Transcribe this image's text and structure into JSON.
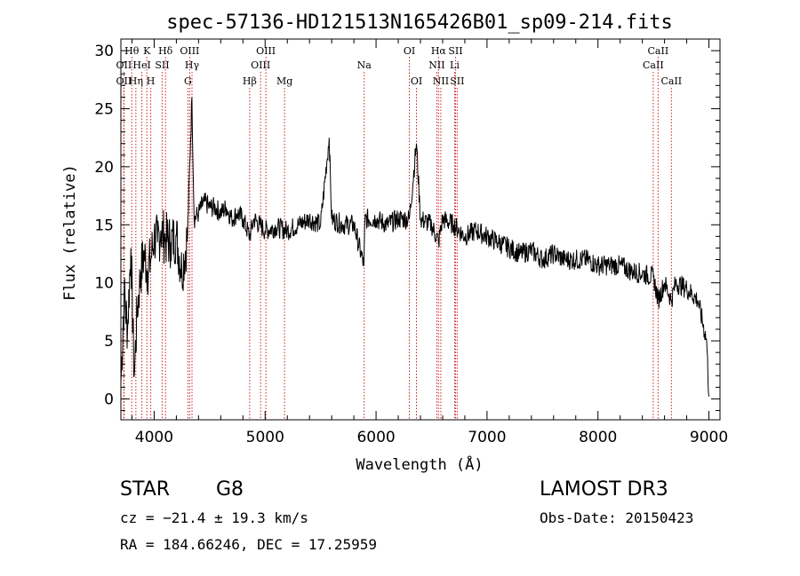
{
  "chart_data": {
    "type": "line",
    "title": "spec-57136-HD121513N165426B01_sp09-214.fits",
    "xlabel": "Wavelength (Å)",
    "ylabel": "Flux (relative)",
    "xlim": [
      3700,
      9100
    ],
    "ylim": [
      -1.8,
      31.0
    ],
    "xticks": [
      4000,
      5000,
      6000,
      7000,
      8000,
      9000
    ],
    "yticks": [
      0,
      5,
      10,
      15,
      20,
      25,
      30
    ],
    "xtick_labels": [
      "4000",
      "5000",
      "6000",
      "7000",
      "8000",
      "9000"
    ],
    "ytick_labels": [
      "0",
      "5",
      "10",
      "15",
      "20",
      "25",
      "30"
    ],
    "grid": false,
    "series": [
      {
        "name": "spectrum",
        "x": [
          3700,
          3730,
          3760,
          3790,
          3820,
          3850,
          3880,
          3910,
          3940,
          3970,
          4000,
          4030,
          4060,
          4100,
          4150,
          4200,
          4250,
          4300,
          4340,
          4360,
          4400,
          4450,
          4500,
          4550,
          4600,
          4650,
          4700,
          4750,
          4800,
          4860,
          4900,
          4950,
          5000,
          5100,
          5200,
          5300,
          5400,
          5500,
          5577,
          5600,
          5700,
          5800,
          5890,
          5900,
          6000,
          6100,
          6200,
          6300,
          6364,
          6400,
          6500,
          6563,
          6600,
          6700,
          6800,
          6900,
          7000,
          7100,
          7200,
          7300,
          7400,
          7500,
          7600,
          7700,
          7800,
          7900,
          8000,
          8100,
          8200,
          8300,
          8400,
          8500,
          8542,
          8600,
          8662,
          8700,
          8800,
          8900,
          8980,
          9000
        ],
        "y": [
          1.5,
          9.0,
          6.0,
          13.0,
          2.0,
          8.0,
          11.0,
          12.5,
          11.0,
          12.0,
          14.0,
          13.5,
          14.5,
          13.8,
          13.5,
          14.0,
          11.0,
          14.0,
          26.0,
          15.5,
          16.0,
          17.0,
          16.5,
          16.5,
          16.0,
          16.5,
          15.5,
          16.0,
          15.5,
          14.0,
          15.5,
          15.0,
          14.5,
          14.8,
          14.5,
          15.0,
          15.5,
          15.0,
          22.5,
          15.5,
          15.0,
          15.0,
          11.5,
          15.5,
          15.5,
          15.0,
          15.5,
          15.5,
          22.0,
          15.5,
          15.0,
          13.5,
          15.5,
          15.0,
          14.0,
          14.5,
          14.0,
          13.5,
          13.0,
          12.5,
          12.8,
          12.0,
          12.5,
          12.0,
          12.0,
          12.0,
          11.5,
          11.5,
          11.5,
          11.0,
          10.8,
          10.5,
          8.5,
          10.0,
          8.5,
          10.0,
          9.5,
          8.5,
          5.0,
          0.2
        ]
      }
    ],
    "annotations": [
      {
        "label": "OII",
        "x": 3727,
        "row": 2
      },
      {
        "label": "OII",
        "x": 3727,
        "row": 3
      },
      {
        "label": "Hθ",
        "x": 3798,
        "row": 1
      },
      {
        "label": "Hη",
        "x": 3835,
        "row": 3
      },
      {
        "label": "HeI",
        "x": 3889,
        "row": 2
      },
      {
        "label": "K",
        "x": 3934,
        "row": 1
      },
      {
        "label": "H",
        "x": 3969,
        "row": 3
      },
      {
        "label": "SII",
        "x": 4072,
        "row": 2
      },
      {
        "label": "Hδ",
        "x": 4102,
        "row": 1
      },
      {
        "label": "G",
        "x": 4304,
        "row": 3
      },
      {
        "label": "OIII",
        "x": 4320,
        "row": 1
      },
      {
        "label": "Hγ",
        "x": 4341,
        "row": 2
      },
      {
        "label": "Hβ",
        "x": 4861,
        "row": 3
      },
      {
        "label": "OIII",
        "x": 4959,
        "row": 2
      },
      {
        "label": "OIII",
        "x": 5007,
        "row": 1
      },
      {
        "label": "Mg",
        "x": 5175,
        "row": 3
      },
      {
        "label": "Na",
        "x": 5893,
        "row": 2
      },
      {
        "label": "OI",
        "x": 6300,
        "row": 1
      },
      {
        "label": "OI",
        "x": 6364,
        "row": 3
      },
      {
        "label": "NII",
        "x": 6548,
        "row": 2
      },
      {
        "label": "Hα",
        "x": 6563,
        "row": 1
      },
      {
        "label": "NII",
        "x": 6584,
        "row": 3
      },
      {
        "label": "Li",
        "x": 6708,
        "row": 2
      },
      {
        "label": "SII",
        "x": 6716,
        "row": 1
      },
      {
        "label": "SII",
        "x": 6731,
        "row": 3
      },
      {
        "label": "CaII",
        "x": 8498,
        "row": 2
      },
      {
        "label": "CaII",
        "x": 8542,
        "row": 1
      },
      {
        "label": "CaII",
        "x": 8662,
        "row": 3
      }
    ],
    "colors": {
      "line": "#000000",
      "axes": "#000000",
      "markers": "#cc2222"
    }
  },
  "info": {
    "object_class": "STAR",
    "subclass": "G8",
    "survey": "LAMOST DR3",
    "cz": "cz = −21.4 ± 19.3 km/s",
    "obs_date": "Obs-Date: 20150423",
    "coords": "RA = 184.66246, DEC =  17.25959"
  }
}
